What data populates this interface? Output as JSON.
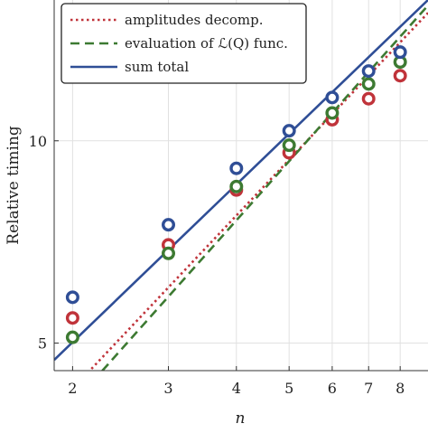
{
  "chart_data": {
    "type": "line",
    "xlabel": "n",
    "ylabel": "Relative timing",
    "xscale": "log",
    "yscale": "log",
    "xlim": [
      1.85,
      9.0
    ],
    "ylim": [
      4.55,
      16.2
    ],
    "xticks": [
      2,
      3,
      4,
      5,
      6,
      7,
      8
    ],
    "yticks": [
      5,
      10
    ],
    "grid": true,
    "legend_position": "top-left",
    "series": [
      {
        "name": "amplitudes decomp.",
        "style": "dotted",
        "color": "#c0333a",
        "line": {
          "x": [
            1.85,
            9.0
          ],
          "y": [
            4.0,
            15.5
          ]
        },
        "points": {
          "x": [
            2,
            3,
            4,
            5,
            6,
            7,
            8
          ],
          "y": [
            5.45,
            7.0,
            8.45,
            9.6,
            10.75,
            11.55,
            12.5
          ]
        }
      },
      {
        "name": "evaluation of ℒ(Q) func.",
        "style": "dashed",
        "color": "#3d7a32",
        "line": {
          "x": [
            1.85,
            9.0
          ],
          "y": [
            3.78,
            15.9
          ]
        },
        "points": {
          "x": [
            2,
            3,
            4,
            5,
            6,
            7,
            8
          ],
          "y": [
            5.1,
            6.8,
            8.55,
            9.85,
            11.0,
            12.15,
            13.1
          ]
        }
      },
      {
        "name": "sum total",
        "style": "solid",
        "color": "#2f4e96",
        "line": {
          "x": [
            1.85,
            9.0
          ],
          "y": [
            4.72,
            16.2
          ]
        },
        "points": {
          "x": [
            2,
            3,
            4,
            5,
            6,
            7,
            8
          ],
          "y": [
            5.85,
            7.5,
            9.1,
            10.35,
            11.6,
            12.7,
            13.55
          ]
        }
      }
    ]
  }
}
